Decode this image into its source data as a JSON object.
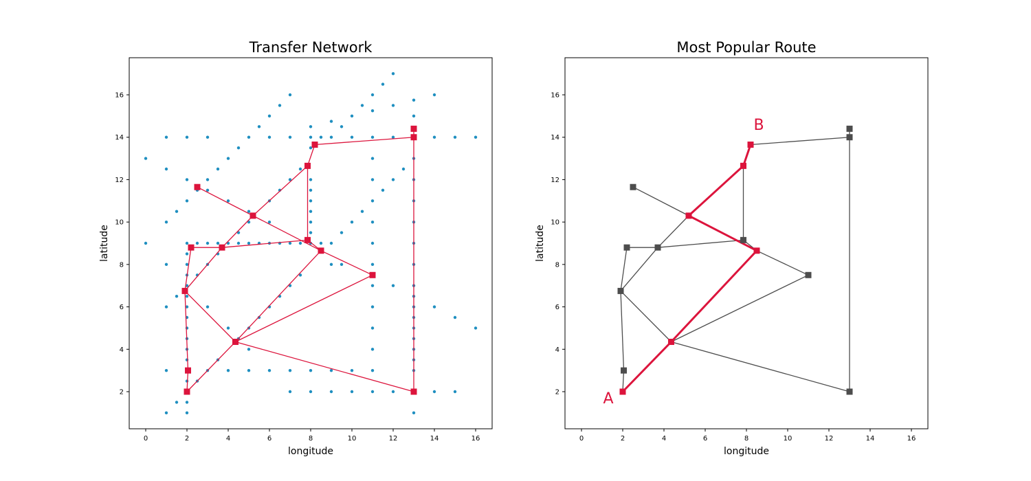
{
  "chart_data": [
    {
      "type": "scatter",
      "title": "Transfer Network",
      "xlabel": "longitude",
      "ylabel": "latitude",
      "xlim": [
        -0.8,
        16.8
      ],
      "ylim": [
        0.25,
        17.75
      ],
      "xticks": [
        0,
        2,
        4,
        6,
        8,
        10,
        12,
        14,
        16
      ],
      "yticks": [
        2,
        4,
        6,
        8,
        10,
        12,
        14,
        16
      ],
      "grid": false,
      "colors": {
        "points": "#1f8fc0",
        "network": "#dc143c"
      },
      "points": [
        [
          0,
          13
        ],
        [
          0,
          9
        ],
        [
          1,
          14
        ],
        [
          1,
          12.5
        ],
        [
          1,
          10
        ],
        [
          1,
          8
        ],
        [
          1,
          6
        ],
        [
          1,
          3
        ],
        [
          1,
          1
        ],
        [
          1.5,
          10.5
        ],
        [
          1.5,
          6.5
        ],
        [
          1.5,
          1.5
        ],
        [
          2,
          14
        ],
        [
          2,
          12
        ],
        [
          2,
          11
        ],
        [
          2,
          9
        ],
        [
          2,
          8.5
        ],
        [
          2,
          8
        ],
        [
          2,
          7.5
        ],
        [
          2,
          7
        ],
        [
          2,
          6.5
        ],
        [
          2,
          6
        ],
        [
          2,
          5.5
        ],
        [
          2,
          5
        ],
        [
          2,
          4.5
        ],
        [
          2,
          4
        ],
        [
          2,
          3.5
        ],
        [
          2,
          3
        ],
        [
          2,
          2.5
        ],
        [
          2,
          1.5
        ],
        [
          2,
          1
        ],
        [
          2.5,
          11.5
        ],
        [
          2.5,
          9
        ],
        [
          2.5,
          7.5
        ],
        [
          2.5,
          2.5
        ],
        [
          3,
          14
        ],
        [
          3,
          12
        ],
        [
          3,
          11.5
        ],
        [
          3,
          9
        ],
        [
          3,
          8
        ],
        [
          3,
          6
        ],
        [
          3,
          3
        ],
        [
          3.5,
          12.5
        ],
        [
          3.5,
          9
        ],
        [
          3.5,
          8.5
        ],
        [
          3.5,
          3.5
        ],
        [
          4,
          13
        ],
        [
          4,
          11
        ],
        [
          4,
          9
        ],
        [
          4,
          5
        ],
        [
          4,
          3
        ],
        [
          4.5,
          13.5
        ],
        [
          4.5,
          9.5
        ],
        [
          4.5,
          9
        ],
        [
          4.5,
          4.5
        ],
        [
          5,
          14
        ],
        [
          5,
          10.5
        ],
        [
          5,
          10
        ],
        [
          5,
          9
        ],
        [
          5,
          5
        ],
        [
          5,
          4
        ],
        [
          5,
          3
        ],
        [
          5.5,
          14.5
        ],
        [
          5.5,
          9
        ],
        [
          5.5,
          5.5
        ],
        [
          6,
          15
        ],
        [
          6,
          14
        ],
        [
          6,
          11
        ],
        [
          6,
          10
        ],
        [
          6,
          9
        ],
        [
          6,
          6
        ],
        [
          6,
          3
        ],
        [
          6.5,
          15.5
        ],
        [
          6.5,
          11.5
        ],
        [
          6.5,
          9
        ],
        [
          6.5,
          6.5
        ],
        [
          7,
          16
        ],
        [
          7,
          14
        ],
        [
          7,
          12
        ],
        [
          7,
          9
        ],
        [
          7,
          7
        ],
        [
          7,
          3
        ],
        [
          7,
          2
        ],
        [
          7.5,
          12.5
        ],
        [
          7.5,
          9
        ],
        [
          7.5,
          7.5
        ],
        [
          8,
          14.5
        ],
        [
          8,
          14
        ],
        [
          8,
          13.5
        ],
        [
          8,
          12
        ],
        [
          8,
          11.5
        ],
        [
          8,
          11
        ],
        [
          8,
          10.5
        ],
        [
          8,
          10
        ],
        [
          8,
          9.5
        ],
        [
          8,
          9
        ],
        [
          8,
          3
        ],
        [
          8,
          2
        ],
        [
          8.5,
          14
        ],
        [
          8.5,
          9
        ],
        [
          9,
          14.75
        ],
        [
          9,
          14
        ],
        [
          9,
          9
        ],
        [
          9,
          8
        ],
        [
          9,
          3
        ],
        [
          9,
          2
        ],
        [
          9.5,
          14.5
        ],
        [
          9.5,
          9.5
        ],
        [
          9.5,
          8
        ],
        [
          10,
          15
        ],
        [
          10,
          14
        ],
        [
          10,
          10
        ],
        [
          10,
          3
        ],
        [
          10,
          2
        ],
        [
          10.5,
          15.5
        ],
        [
          10.5,
          10.5
        ],
        [
          11,
          16
        ],
        [
          11,
          15.25
        ],
        [
          11,
          14
        ],
        [
          11,
          13
        ],
        [
          11,
          12
        ],
        [
          11,
          11
        ],
        [
          11,
          10
        ],
        [
          11,
          9
        ],
        [
          11,
          8
        ],
        [
          11,
          7
        ],
        [
          11,
          6
        ],
        [
          11,
          5
        ],
        [
          11,
          4
        ],
        [
          11,
          3
        ],
        [
          11,
          2
        ],
        [
          11.5,
          16.5
        ],
        [
          11.5,
          11.5
        ],
        [
          12,
          17
        ],
        [
          12,
          15.5
        ],
        [
          12,
          14
        ],
        [
          12,
          12
        ],
        [
          12,
          7
        ],
        [
          12,
          2
        ],
        [
          12.5,
          12.5
        ],
        [
          13,
          15.75
        ],
        [
          13,
          15
        ],
        [
          13,
          13
        ],
        [
          13,
          12
        ],
        [
          13,
          11
        ],
        [
          13,
          10
        ],
        [
          13,
          9
        ],
        [
          13,
          8
        ],
        [
          13,
          7
        ],
        [
          13,
          6.5
        ],
        [
          13,
          6
        ],
        [
          13,
          5.5
        ],
        [
          13,
          5
        ],
        [
          13,
          4.5
        ],
        [
          13,
          4
        ],
        [
          13,
          3.5
        ],
        [
          13,
          3
        ],
        [
          13,
          1
        ],
        [
          14,
          16
        ],
        [
          14,
          14
        ],
        [
          14,
          6
        ],
        [
          14,
          2
        ],
        [
          15,
          14
        ],
        [
          15,
          5.5
        ],
        [
          15,
          2
        ],
        [
          16,
          14
        ],
        [
          16,
          5
        ]
      ],
      "nodes": [
        [
          13,
          14.4
        ],
        [
          13,
          14
        ],
        [
          8.2,
          13.65
        ],
        [
          7.85,
          12.65
        ],
        [
          2.5,
          11.65
        ],
        [
          5.2,
          10.3
        ],
        [
          2.2,
          8.8
        ],
        [
          3.7,
          8.8
        ],
        [
          7.85,
          9.15
        ],
        [
          8.5,
          8.65
        ],
        [
          11,
          7.5
        ],
        [
          1.9,
          6.75
        ],
        [
          4.35,
          4.35
        ],
        [
          2.05,
          3
        ],
        [
          2,
          2
        ],
        [
          13,
          2
        ]
      ],
      "edges": [
        [
          0,
          1
        ],
        [
          1,
          2
        ],
        [
          2,
          3
        ],
        [
          3,
          8
        ],
        [
          3,
          5
        ],
        [
          4,
          5
        ],
        [
          5,
          9
        ],
        [
          5,
          7
        ],
        [
          6,
          7
        ],
        [
          7,
          8
        ],
        [
          8,
          9
        ],
        [
          6,
          11
        ],
        [
          7,
          11
        ],
        [
          9,
          10
        ],
        [
          9,
          12
        ],
        [
          10,
          12
        ],
        [
          11,
          13
        ],
        [
          11,
          12
        ],
        [
          12,
          15
        ],
        [
          12,
          14
        ],
        [
          13,
          14
        ],
        [
          1,
          15
        ]
      ]
    },
    {
      "type": "scatter",
      "title": "Most Popular Route",
      "xlabel": "longitude",
      "ylabel": "latitude",
      "xlim": [
        -0.8,
        16.8
      ],
      "ylim": [
        0.25,
        17.75
      ],
      "xticks": [
        0,
        2,
        4,
        6,
        8,
        10,
        12,
        14,
        16
      ],
      "yticks": [
        2,
        4,
        6,
        8,
        10,
        12,
        14,
        16
      ],
      "grid": false,
      "colors": {
        "network": "#4d4d4d",
        "route": "#dc143c"
      },
      "nodes": [
        [
          13,
          14.4
        ],
        [
          13,
          14
        ],
        [
          8.2,
          13.65
        ],
        [
          7.85,
          12.65
        ],
        [
          2.5,
          11.65
        ],
        [
          5.2,
          10.3
        ],
        [
          2.2,
          8.8
        ],
        [
          3.7,
          8.8
        ],
        [
          7.85,
          9.15
        ],
        [
          8.5,
          8.65
        ],
        [
          11,
          7.5
        ],
        [
          1.9,
          6.75
        ],
        [
          4.35,
          4.35
        ],
        [
          2.05,
          3
        ],
        [
          2,
          2
        ],
        [
          13,
          2
        ]
      ],
      "edges": [
        [
          0,
          1
        ],
        [
          1,
          2
        ],
        [
          3,
          8
        ],
        [
          4,
          5
        ],
        [
          5,
          7
        ],
        [
          6,
          7
        ],
        [
          7,
          8
        ],
        [
          8,
          9
        ],
        [
          6,
          11
        ],
        [
          7,
          11
        ],
        [
          9,
          10
        ],
        [
          10,
          12
        ],
        [
          11,
          13
        ],
        [
          11,
          12
        ],
        [
          12,
          15
        ],
        [
          13,
          14
        ],
        [
          1,
          15
        ]
      ],
      "route": [
        14,
        12,
        9,
        5,
        3,
        2
      ],
      "annotations": [
        {
          "text": "A",
          "x": 1.3,
          "y": 1.45
        },
        {
          "text": "B",
          "x": 8.6,
          "y": 14.35
        }
      ]
    }
  ]
}
